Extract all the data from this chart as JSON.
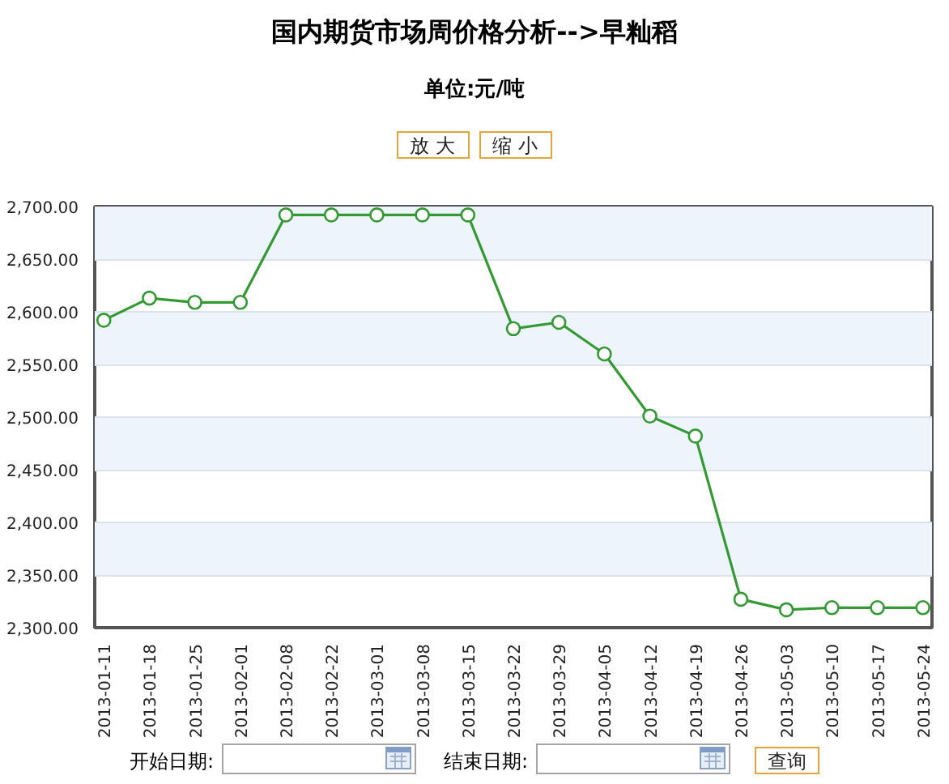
{
  "chart_data": {
    "type": "line",
    "title": "国内期货市场周价格分析-->早籼稻",
    "subtitle": "单位:元/吨",
    "annotations": [
      "放大",
      "缩小",
      "开始日期:",
      "结束日期:",
      "查询"
    ],
    "categories": [
      "2013-01-11",
      "2013-01-18",
      "2013-01-25",
      "2013-02-01",
      "2013-02-08",
      "2013-02-22",
      "2013-03-01",
      "2013-03-08",
      "2013-03-15",
      "2013-03-22",
      "2013-03-29",
      "2013-04-05",
      "2013-04-12",
      "2013-04-19",
      "2013-04-26",
      "2013-05-03",
      "2013-05-10",
      "2013-05-17",
      "2013-05-24"
    ],
    "series": [
      {
        "color": "#339933",
        "values": [
          2592,
          2613,
          2609,
          2609,
          2692,
          2692,
          2692,
          2692,
          2692,
          2584,
          2590,
          2560,
          2501,
          2482,
          2327,
          2317,
          2319,
          2319,
          2319
        ]
      }
    ],
    "ylim": [
      2300,
      2700
    ],
    "yticks": [
      {
        "value": 2300,
        "label": "2,300.00"
      },
      {
        "value": 2350,
        "label": "2,350.00"
      },
      {
        "value": 2400,
        "label": "2,400.00"
      },
      {
        "value": 2450,
        "label": "2,450.00"
      },
      {
        "value": 2500,
        "label": "2,500.00"
      },
      {
        "value": 2550,
        "label": "2,550.00"
      },
      {
        "value": 2600,
        "label": "2,600.00"
      },
      {
        "value": 2650,
        "label": "2,650.00"
      },
      {
        "value": 2700,
        "label": "2,700.00"
      }
    ],
    "grid": "y",
    "marker": "circle",
    "line_style": "solid"
  }
}
